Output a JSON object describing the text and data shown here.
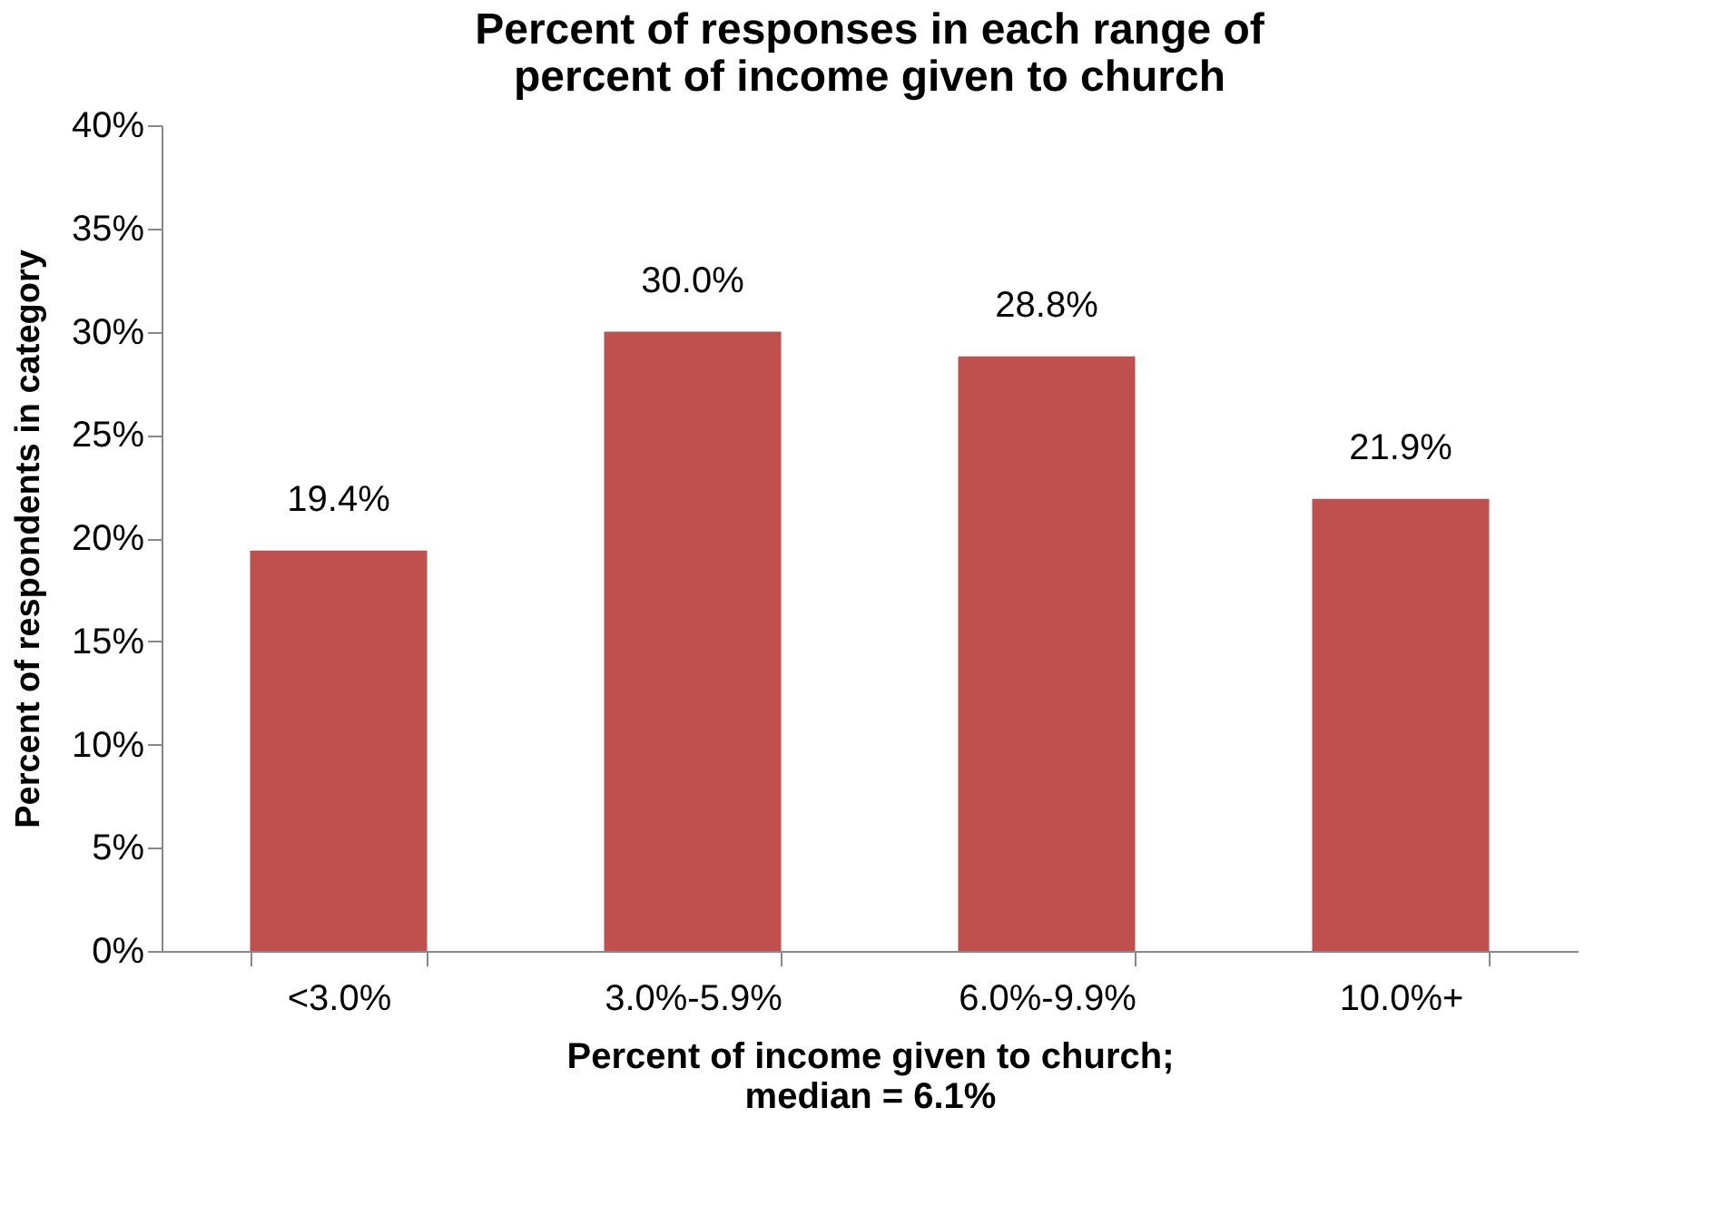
{
  "chart_data": {
    "type": "bar",
    "title": "Percent of responses in each range of\npercent of income given to church",
    "xlabel": "Percent of income given to church;\nmedian = 6.1%",
    "ylabel": "Percent of respondents in category",
    "categories": [
      "<3.0%",
      "3.0%-5.9%",
      "6.0%-9.9%",
      "10.0%+"
    ],
    "series": [
      {
        "color": "#c0504d",
        "values": [
          19.4,
          30.0,
          28.8,
          21.9
        ]
      }
    ],
    "value_labels": [
      "19.4%",
      "30.0%",
      "28.8%",
      "21.9%"
    ],
    "ylim": [
      0,
      40
    ],
    "yticks": [
      {
        "value": 0,
        "label": "0%"
      },
      {
        "value": 5,
        "label": "5%"
      },
      {
        "value": 10,
        "label": "10%"
      },
      {
        "value": 15,
        "label": "15%"
      },
      {
        "value": 20,
        "label": "20%"
      },
      {
        "value": 25,
        "label": "25%"
      },
      {
        "value": 30,
        "label": "30%"
      },
      {
        "value": 35,
        "label": "35%"
      },
      {
        "value": 40,
        "label": "40%"
      }
    ],
    "grid": false
  }
}
